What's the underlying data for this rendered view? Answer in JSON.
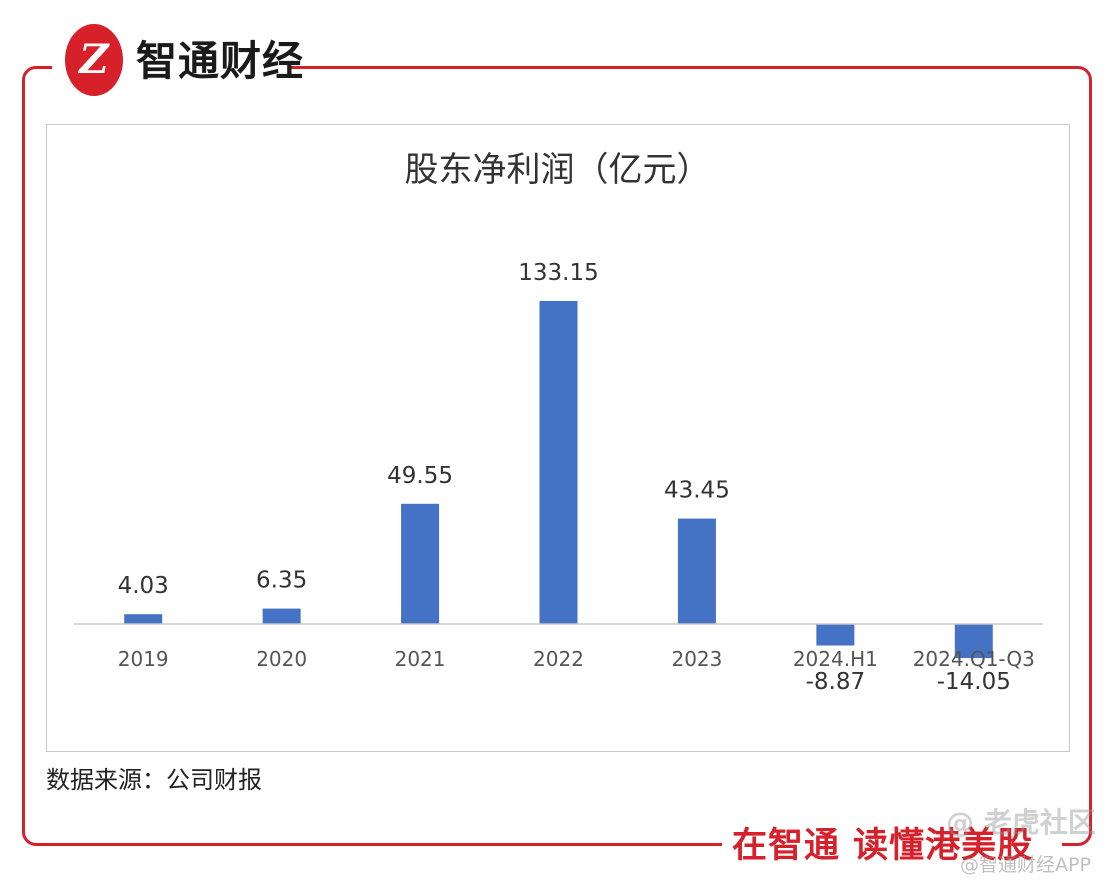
{
  "brand": {
    "logo_mark": "Z",
    "name": "智通财经",
    "slogan": "在智通 读懂港美股",
    "watermark_community": "@ 老虎社区",
    "watermark_app": "@智通财经APP",
    "accent_color": "#d6202a"
  },
  "source_note": "数据来源：公司财报",
  "chart_data": {
    "type": "bar",
    "title": "股东净利润（亿元）",
    "categories": [
      "2019",
      "2020",
      "2021",
      "2022",
      "2023",
      "2024.H1",
      "2024.Q1-Q3"
    ],
    "values": [
      4.03,
      6.35,
      49.55,
      133.15,
      43.45,
      -8.87,
      -14.05
    ],
    "value_labels": [
      "4.03",
      "6.35",
      "49.55",
      "133.15",
      "43.45",
      "-8.87",
      "-14.05"
    ],
    "xlabel": "",
    "ylabel": "",
    "ylim": [
      -20,
      140
    ],
    "grid": false,
    "legend": "none",
    "bar_color": "#4472c4",
    "axis_color": "#c8c8c8"
  }
}
